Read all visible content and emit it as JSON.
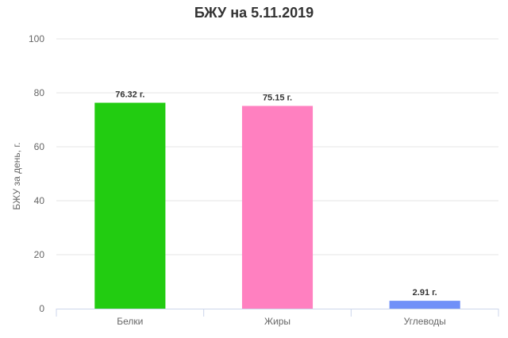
{
  "chart_data": {
    "type": "bar",
    "title": "БЖУ на 5.11.2019",
    "xlabel": "",
    "ylabel": "БЖУ за день, г.",
    "ylim": [
      0,
      100
    ],
    "yticks": [
      "0",
      "20",
      "40",
      "60",
      "80",
      "100"
    ],
    "grid": true,
    "categories": [
      "Белки",
      "Жиры",
      "Углеводы"
    ],
    "values": [
      76.32,
      75.15,
      2.91
    ],
    "data_labels": [
      "76.32 г.",
      "75.15 г.",
      "2.91 г."
    ],
    "colors": [
      "#22cc11",
      "#ff80c0",
      "#7090f8"
    ]
  }
}
